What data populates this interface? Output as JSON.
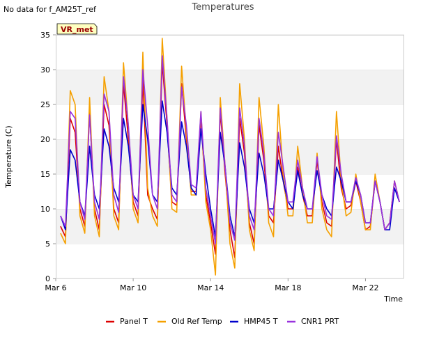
{
  "header": {
    "no_data_note": "No data for f_AM25T_ref"
  },
  "chart_data": {
    "type": "line",
    "title": "Temperatures",
    "xlabel": "Time",
    "ylabel": "Temperature (C)",
    "ylim": [
      0,
      35
    ],
    "yticks": [
      0,
      5,
      10,
      15,
      20,
      25,
      30,
      35
    ],
    "x_range_days": [
      "2023-03-06",
      "2023-03-24"
    ],
    "xticks": [
      {
        "date": "2023-03-06",
        "label": "Mar 6"
      },
      {
        "date": "2023-03-10",
        "label": "Mar 10"
      },
      {
        "date": "2023-03-14",
        "label": "Mar 14"
      },
      {
        "date": "2023-03-18",
        "label": "Mar 18"
      },
      {
        "date": "2023-03-22",
        "label": "Mar 22"
      }
    ],
    "grid": "horizontal-bands",
    "annotation": {
      "text": "VR_met",
      "placement": "top-left"
    },
    "legend": {
      "placement": "bottom"
    },
    "x": [
      "2023-03-06 06:00",
      "2023-03-06 12:00",
      "2023-03-06 18:00",
      "2023-03-07 00:00",
      "2023-03-07 06:00",
      "2023-03-07 12:00",
      "2023-03-07 18:00",
      "2023-03-08 00:00",
      "2023-03-08 06:00",
      "2023-03-08 12:00",
      "2023-03-08 18:00",
      "2023-03-09 00:00",
      "2023-03-09 06:00",
      "2023-03-09 12:00",
      "2023-03-09 18:00",
      "2023-03-10 00:00",
      "2023-03-10 06:00",
      "2023-03-10 12:00",
      "2023-03-10 18:00",
      "2023-03-11 00:00",
      "2023-03-11 06:00",
      "2023-03-11 12:00",
      "2023-03-11 18:00",
      "2023-03-12 00:00",
      "2023-03-12 06:00",
      "2023-03-12 12:00",
      "2023-03-12 18:00",
      "2023-03-13 00:00",
      "2023-03-13 06:00",
      "2023-03-13 12:00",
      "2023-03-13 18:00",
      "2023-03-14 00:00",
      "2023-03-14 06:00",
      "2023-03-14 12:00",
      "2023-03-14 18:00",
      "2023-03-15 00:00",
      "2023-03-15 06:00",
      "2023-03-15 12:00",
      "2023-03-15 18:00",
      "2023-03-16 00:00",
      "2023-03-16 06:00",
      "2023-03-16 12:00",
      "2023-03-16 18:00",
      "2023-03-17 00:00",
      "2023-03-17 06:00",
      "2023-03-17 12:00",
      "2023-03-17 18:00",
      "2023-03-18 00:00",
      "2023-03-18 06:00",
      "2023-03-18 12:00",
      "2023-03-18 18:00",
      "2023-03-19 00:00",
      "2023-03-19 06:00",
      "2023-03-19 12:00",
      "2023-03-19 18:00",
      "2023-03-20 00:00",
      "2023-03-20 06:00",
      "2023-03-20 12:00",
      "2023-03-20 18:00",
      "2023-03-21 00:00",
      "2023-03-21 06:00",
      "2023-03-21 12:00",
      "2023-03-21 18:00",
      "2023-03-22 00:00",
      "2023-03-22 06:00",
      "2023-03-22 12:00",
      "2023-03-22 18:00",
      "2023-03-23 00:00",
      "2023-03-23 06:00",
      "2023-03-23 12:00",
      "2023-03-23 18:00"
    ],
    "series": [
      {
        "name": "Panel T",
        "color": "#dd0000",
        "values": [
          7.5,
          6,
          23,
          21,
          10,
          7.5,
          24,
          10,
          7,
          25,
          22,
          10,
          8,
          28,
          20,
          11,
          9,
          28.5,
          12,
          10,
          8.5,
          31,
          22,
          11,
          10.5,
          28,
          20,
          12.5,
          12.5,
          23,
          12,
          8,
          3.5,
          24,
          15,
          7,
          3,
          23,
          18,
          8,
          5,
          22,
          17,
          9,
          8,
          19,
          14,
          10,
          10,
          16,
          12,
          9,
          9,
          17,
          11,
          8,
          7.5,
          20,
          13,
          10,
          10.5,
          14,
          11,
          7,
          7.5,
          14,
          11,
          7,
          8,
          14,
          11
        ]
      },
      {
        "name": "Old Ref Temp",
        "color": "#f5a000",
        "values": [
          6.5,
          5,
          27,
          25,
          9,
          6.5,
          26,
          9,
          6,
          29,
          24,
          9,
          7,
          31,
          22,
          10,
          8,
          32.5,
          13,
          9,
          7.5,
          34.5,
          23,
          10,
          9.5,
          30.5,
          21,
          12,
          12,
          24,
          11,
          7,
          0.5,
          26,
          16,
          5,
          1.5,
          28,
          20,
          7,
          4,
          26,
          19,
          8,
          6,
          25,
          15,
          9,
          9,
          19,
          13,
          8,
          8,
          18,
          10,
          7,
          6,
          24,
          14,
          9,
          9.5,
          15,
          11,
          7,
          7,
          15,
          11,
          7,
          8,
          14,
          11
        ]
      },
      {
        "name": "HMP45 T",
        "color": "#0000cc",
        "values": [
          9,
          7,
          18.5,
          17,
          11,
          9,
          19,
          12,
          10,
          21.5,
          19,
          13,
          11,
          23,
          19,
          12,
          11,
          25,
          20,
          12,
          11,
          25.5,
          21,
          13,
          12,
          22.5,
          19,
          13,
          12,
          21.5,
          15,
          10,
          6,
          21,
          16,
          9,
          6,
          19.5,
          16,
          10,
          8,
          18,
          15,
          10,
          10,
          17,
          14,
          11,
          10,
          15.5,
          12,
          10,
          10,
          15.5,
          12,
          10,
          9,
          16,
          14,
          11,
          11,
          14,
          12,
          8,
          8,
          14,
          11,
          7,
          7,
          13,
          11
        ]
      },
      {
        "name": "CNR1 PRT",
        "color": "#9933dd",
        "values": [
          9,
          7.5,
          24,
          23,
          11,
          8.5,
          23.5,
          11,
          8.5,
          26.5,
          24,
          12,
          9.5,
          29,
          22,
          12,
          10,
          30,
          22,
          12,
          10,
          32,
          23,
          12,
          11,
          27.5,
          22,
          13.5,
          13,
          24,
          13,
          9,
          5,
          24.5,
          16,
          8,
          5.5,
          24.5,
          19,
          9,
          7,
          23,
          18,
          10,
          9,
          21,
          16,
          11,
          11,
          17,
          13,
          10,
          10,
          17.5,
          12,
          9,
          8.5,
          20.5,
          15,
          11,
          11,
          14.5,
          12,
          8,
          8,
          14,
          11,
          7,
          8,
          14,
          11
        ]
      }
    ]
  }
}
